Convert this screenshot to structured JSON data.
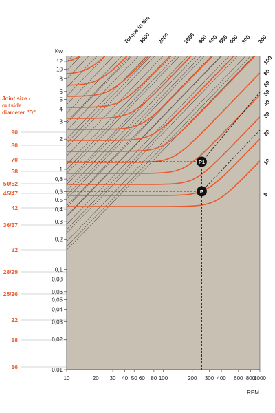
{
  "chart_data": {
    "type": "line",
    "title": "",
    "xlabel": "RPM",
    "ylabel": "Kw",
    "x_scale": "log",
    "y_scale": "log",
    "xlim": [
      10,
      1000
    ],
    "ylim": [
      0.01,
      15
    ],
    "grid": false,
    "x_ticks": [
      "10",
      "20",
      "30",
      "40",
      "50",
      "60",
      "80",
      "100",
      "200",
      "300",
      "400",
      "600",
      "800",
      "1000"
    ],
    "y_ticks": [
      "12",
      "10",
      "8",
      "6",
      "5",
      "4",
      "3",
      "2",
      "1",
      "0,8",
      "0,6",
      "0,5",
      "0,4",
      "0,3",
      "0,2",
      "0,1",
      "0,08",
      "0,06",
      "0,05",
      "0,04",
      "0,03",
      "0,02",
      "0,01"
    ],
    "joint_size_title": [
      "Joint size -",
      "outside",
      "diameter \"D\""
    ],
    "joint_sizes": [
      "90",
      "80",
      "70",
      "58",
      "50/52",
      "45/47",
      "42",
      "36/37",
      "32",
      "28/29",
      "25/26",
      "22",
      "18",
      "16"
    ],
    "torque_title": "Torque in Nm",
    "torque_values": [
      "3000",
      "2000",
      "1000",
      "800",
      "600",
      "500",
      "400",
      "300",
      "200"
    ],
    "angle_labels": [
      "100",
      "80",
      "60",
      "50",
      "40",
      "30",
      "20",
      "10",
      "5"
    ],
    "points": [
      {
        "label": "P1",
        "rpm": 250,
        "kw": 1.45
      },
      {
        "label": "P",
        "rpm": 250,
        "kw": 0.65
      }
    ],
    "colors": {
      "background": "#c9c0b4",
      "curve": "#e8592b",
      "line": "#1a1a1a",
      "joint_text": "#e8592b"
    }
  }
}
